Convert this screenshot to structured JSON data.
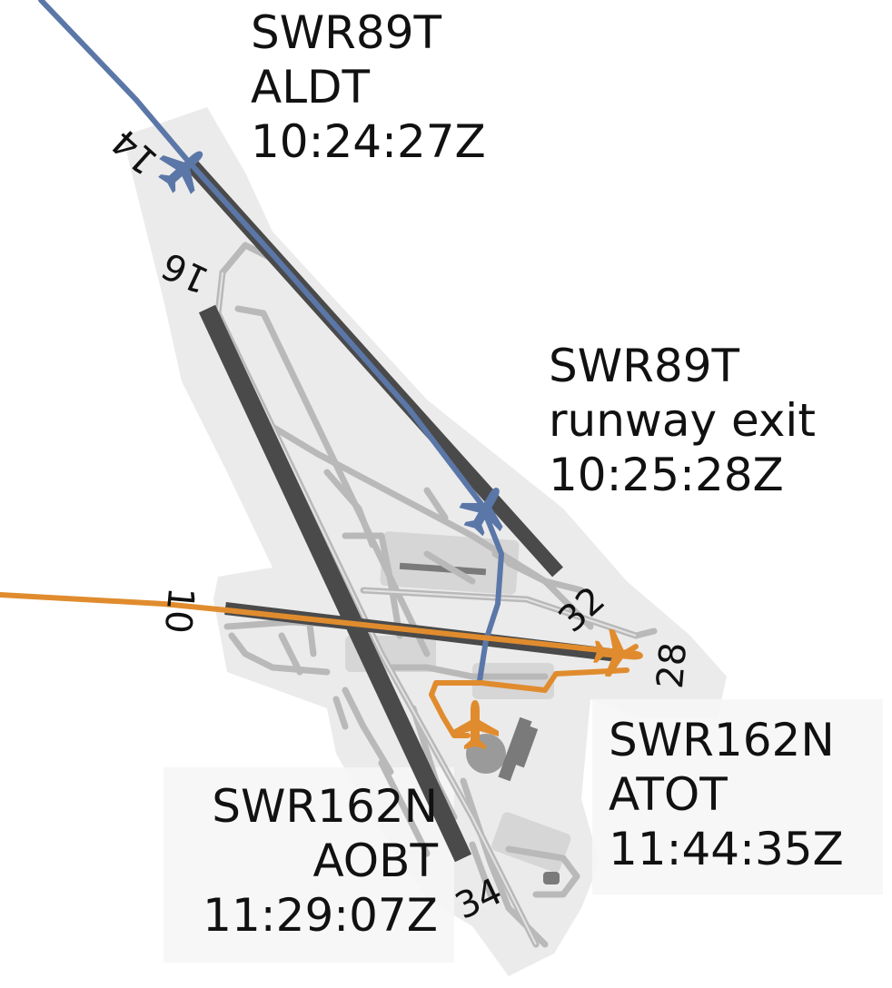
{
  "runways": {
    "r14": "14",
    "r16": "16",
    "r10": "10",
    "r32": "32",
    "r28": "28",
    "r34": "34"
  },
  "events": {
    "aldt": {
      "callsign": "SWR89T",
      "event": "ALDT",
      "time": "10:24:27Z"
    },
    "exit": {
      "callsign": "SWR89T",
      "event": "runway exit",
      "time": "10:25:28Z"
    },
    "aobt": {
      "callsign": "SWR162N",
      "event": "AOBT",
      "time": "11:29:07Z"
    },
    "atot": {
      "callsign": "SWR162N",
      "event": "ATOT",
      "time": "11:44:35Z"
    }
  },
  "colors": {
    "arrival_track": "#5b77a8",
    "departure_track": "#e08c2e",
    "runway": "#4a4a4a",
    "taxiway": "#b9b9b9",
    "airport_area": "#ebebeb"
  },
  "icons": {
    "arrival": "airplane-icon",
    "departure": "airplane-icon"
  }
}
